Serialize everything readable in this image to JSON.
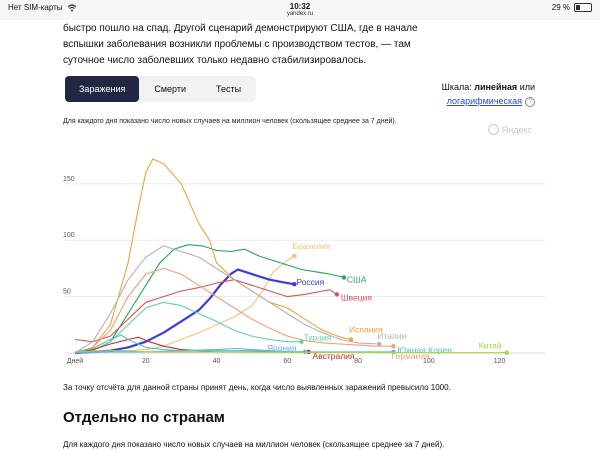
{
  "status_bar": {
    "carrier": "Нет SIM-карты",
    "time": "10:32",
    "url": "yandex.ru",
    "battery": "29 %",
    "battery_level": 0.29
  },
  "intro_text": "быстро пошло на спад. Другой сценарий демонстрируют США, где в начале вспышки заболевания возникли проблемы с производством тестов, — там суточное число заболевших только недавно стабилизировалось.",
  "tabs": [
    {
      "label": "Заражения",
      "active": true
    },
    {
      "label": "Смерти",
      "active": false
    },
    {
      "label": "Тесты",
      "active": false
    }
  ],
  "scale": {
    "prefix": "Шкала:",
    "linear": "линейная",
    "or": "или",
    "log": "логарифмическая",
    "help": "?"
  },
  "chart_description": "Для каждого дня показано число новых случаев на миллион человек (скользящее среднее за 7 дней).",
  "watermark": "Яндекс",
  "chart_data": {
    "type": "line",
    "x_tick_labels": [
      "Дней",
      "20",
      "40",
      "60",
      "80",
      "100",
      "120"
    ],
    "x_ticks": [
      0,
      20,
      40,
      60,
      80,
      100,
      120
    ],
    "y_ticks": [
      50,
      100,
      150
    ],
    "xlim": [
      0,
      130
    ],
    "ylim": [
      0,
      180
    ],
    "grid": "horizontal",
    "series": [
      {
        "name": "Бразилия",
        "color": "#f7c27e",
        "points": [
          [
            0,
            0
          ],
          [
            10,
            1
          ],
          [
            20,
            3
          ],
          [
            25,
            6
          ],
          [
            30,
            12
          ],
          [
            35,
            18
          ],
          [
            40,
            25
          ],
          [
            45,
            32
          ],
          [
            50,
            42
          ],
          [
            53,
            55
          ],
          [
            56,
            72
          ],
          [
            60,
            82
          ],
          [
            62,
            86
          ]
        ]
      },
      {
        "name": "США",
        "color": "#22a85b",
        "points": [
          [
            0,
            0
          ],
          [
            5,
            2
          ],
          [
            10,
            10
          ],
          [
            15,
            35
          ],
          [
            20,
            60
          ],
          [
            24,
            80
          ],
          [
            28,
            92
          ],
          [
            32,
            96
          ],
          [
            36,
            95
          ],
          [
            40,
            91
          ],
          [
            44,
            90
          ],
          [
            48,
            92
          ],
          [
            52,
            86
          ],
          [
            56,
            82
          ],
          [
            60,
            78
          ],
          [
            64,
            74
          ],
          [
            68,
            72
          ],
          [
            72,
            70
          ],
          [
            76,
            67
          ]
        ]
      },
      {
        "name": "Россия",
        "color": "#3d3ae0",
        "points": [
          [
            0,
            0
          ],
          [
            5,
            1
          ],
          [
            10,
            2
          ],
          [
            15,
            5
          ],
          [
            20,
            10
          ],
          [
            25,
            18
          ],
          [
            30,
            28
          ],
          [
            35,
            38
          ],
          [
            38,
            48
          ],
          [
            41,
            60
          ],
          [
            44,
            70
          ],
          [
            46,
            74
          ],
          [
            50,
            70
          ],
          [
            55,
            65
          ],
          [
            60,
            62
          ],
          [
            62,
            61
          ]
        ]
      },
      {
        "name": "Швеция",
        "color": "#e0525b",
        "points": [
          [
            0,
            12
          ],
          [
            5,
            10
          ],
          [
            10,
            15
          ],
          [
            15,
            30
          ],
          [
            20,
            45
          ],
          [
            25,
            50
          ],
          [
            30,
            55
          ],
          [
            35,
            58
          ],
          [
            40,
            62
          ],
          [
            45,
            65
          ],
          [
            50,
            60
          ],
          [
            55,
            55
          ],
          [
            60,
            50
          ],
          [
            65,
            52
          ],
          [
            70,
            55
          ],
          [
            72,
            56
          ],
          [
            74,
            52
          ]
        ]
      },
      {
        "name": "Испания",
        "color": "#f5a33a",
        "points": [
          [
            0,
            0
          ],
          [
            5,
            5
          ],
          [
            10,
            25
          ],
          [
            15,
            80
          ],
          [
            18,
            130
          ],
          [
            20,
            160
          ],
          [
            22,
            172
          ],
          [
            25,
            168
          ],
          [
            30,
            150
          ],
          [
            35,
            115
          ],
          [
            38,
            100
          ],
          [
            40,
            80
          ],
          [
            45,
            65
          ],
          [
            50,
            55
          ],
          [
            55,
            45
          ],
          [
            60,
            40
          ],
          [
            65,
            30
          ],
          [
            70,
            20
          ],
          [
            75,
            14
          ],
          [
            78,
            12
          ]
        ]
      },
      {
        "name": "Италия",
        "color": "#b3b3b3",
        "points": [
          [
            0,
            0
          ],
          [
            5,
            10
          ],
          [
            10,
            35
          ],
          [
            15,
            65
          ],
          [
            20,
            85
          ],
          [
            25,
            95
          ],
          [
            30,
            90
          ],
          [
            35,
            85
          ],
          [
            40,
            75
          ],
          [
            45,
            65
          ],
          [
            50,
            55
          ],
          [
            55,
            45
          ],
          [
            60,
            35
          ],
          [
            65,
            25
          ],
          [
            70,
            18
          ],
          [
            75,
            12
          ],
          [
            80,
            9
          ],
          [
            86,
            8
          ]
        ]
      },
      {
        "name": "Германия",
        "color": "#f59d7a",
        "points": [
          [
            0,
            0
          ],
          [
            5,
            5
          ],
          [
            10,
            20
          ],
          [
            15,
            50
          ],
          [
            20,
            70
          ],
          [
            25,
            75
          ],
          [
            30,
            70
          ],
          [
            35,
            60
          ],
          [
            40,
            50
          ],
          [
            45,
            40
          ],
          [
            50,
            30
          ],
          [
            55,
            22
          ],
          [
            60,
            15
          ],
          [
            65,
            11
          ],
          [
            70,
            9
          ],
          [
            75,
            8
          ],
          [
            80,
            7
          ],
          [
            85,
            6
          ],
          [
            90,
            6
          ]
        ]
      },
      {
        "name": "Турция",
        "color": "#5ed1b0",
        "points": [
          [
            0,
            0
          ],
          [
            5,
            2
          ],
          [
            10,
            10
          ],
          [
            15,
            25
          ],
          [
            20,
            40
          ],
          [
            25,
            45
          ],
          [
            30,
            42
          ],
          [
            35,
            35
          ],
          [
            40,
            28
          ],
          [
            45,
            20
          ],
          [
            50,
            15
          ],
          [
            55,
            12
          ],
          [
            60,
            10
          ],
          [
            64,
            10
          ]
        ]
      },
      {
        "name": "Австралия",
        "color": "#d42a2a",
        "points": [
          [
            0,
            0
          ],
          [
            5,
            3
          ],
          [
            10,
            8
          ],
          [
            15,
            12
          ],
          [
            18,
            14
          ],
          [
            21,
            10
          ],
          [
            25,
            6
          ],
          [
            30,
            3
          ],
          [
            35,
            2
          ],
          [
            40,
            1
          ],
          [
            50,
            1
          ],
          [
            60,
            1
          ],
          [
            66,
            1
          ]
        ]
      },
      {
        "name": "Япония",
        "color": "#5bb4ea",
        "points": [
          [
            0,
            0
          ],
          [
            10,
            1
          ],
          [
            20,
            1
          ],
          [
            30,
            2
          ],
          [
            40,
            3
          ],
          [
            45,
            4
          ],
          [
            50,
            3
          ],
          [
            55,
            2
          ],
          [
            60,
            1
          ],
          [
            65,
            1
          ]
        ]
      },
      {
        "name": "Южная Корея",
        "color": "#4fc3c7",
        "points": [
          [
            0,
            1
          ],
          [
            5,
            4
          ],
          [
            10,
            12
          ],
          [
            13,
            16
          ],
          [
            15,
            12
          ],
          [
            20,
            5
          ],
          [
            25,
            3
          ],
          [
            30,
            2
          ],
          [
            40,
            2
          ],
          [
            50,
            2
          ],
          [
            60,
            1
          ],
          [
            70,
            1
          ],
          [
            80,
            1
          ],
          [
            90,
            1
          ]
        ]
      },
      {
        "name": "Китай",
        "color": "#9fd44c",
        "points": [
          [
            0,
            1
          ],
          [
            10,
            2
          ],
          [
            15,
            2
          ],
          [
            20,
            1
          ],
          [
            40,
            1
          ],
          [
            60,
            0.5
          ],
          [
            80,
            0.4
          ],
          [
            100,
            0.3
          ],
          [
            122,
            0.3
          ]
        ]
      }
    ]
  },
  "note": "За точку отсчёта для данной страны принят день, когда число выявленных заражений превысило 1000.",
  "section_title": "Отдельно по странам",
  "section_description": "Для каждого дня показано число новых случаев на миллион человек (скользящее среднее за 7 дней)."
}
